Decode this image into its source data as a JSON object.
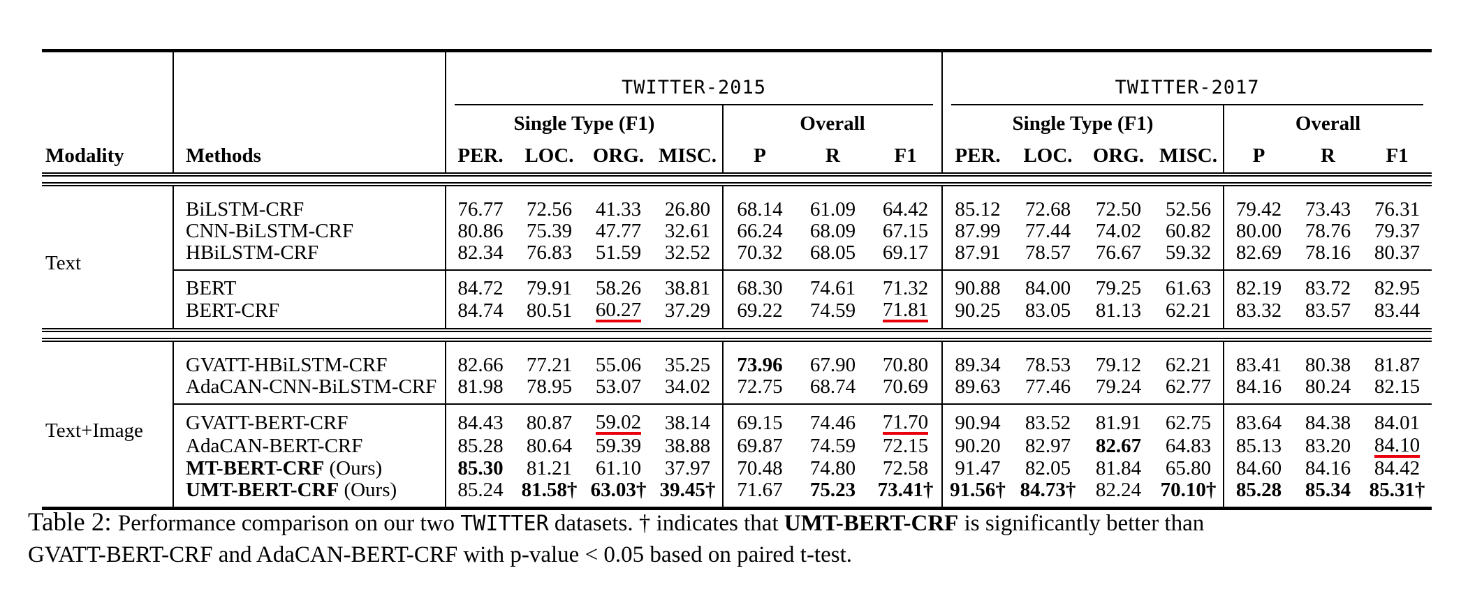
{
  "table": {
    "header": {
      "modality_label": "Modality",
      "methods_label": "Methods",
      "datasets": [
        "TWITTER-2015",
        "TWITTER-2017"
      ],
      "subgroup_labels": {
        "single": "Single Type (F1)",
        "overall": "Overall"
      },
      "columns_single": [
        "PER.",
        "LOC.",
        "ORG.",
        "MISC."
      ],
      "columns_overall": [
        "P",
        "R",
        "F1"
      ]
    },
    "colors": {
      "highlight_underline": "#e8000b",
      "rule": "#000000"
    },
    "groups": [
      {
        "modality": "Text",
        "subgroups": [
          {
            "rows": [
              {
                "method": "BiLSTM-CRF",
                "bold_method": false,
                "suffix": "",
                "cells": [
                  "76.77",
                  "72.56",
                  "41.33",
                  "26.80",
                  "68.14",
                  "61.09",
                  "64.42",
                  "85.12",
                  "72.68",
                  "72.50",
                  "52.56",
                  "79.42",
                  "73.43",
                  "76.31"
                ]
              },
              {
                "method": "CNN-BiLSTM-CRF",
                "bold_method": false,
                "suffix": "",
                "cells": [
                  "80.86",
                  "75.39",
                  "47.77",
                  "32.61",
                  "66.24",
                  "68.09",
                  "67.15",
                  "87.99",
                  "77.44",
                  "74.02",
                  "60.82",
                  "80.00",
                  "78.76",
                  "79.37"
                ]
              },
              {
                "method": "HBiLSTM-CRF",
                "bold_method": false,
                "suffix": "",
                "cells": [
                  "82.34",
                  "76.83",
                  "51.59",
                  "32.52",
                  "70.32",
                  "68.05",
                  "69.17",
                  "87.91",
                  "78.57",
                  "76.67",
                  "59.32",
                  "82.69",
                  "78.16",
                  "80.37"
                ]
              }
            ]
          },
          {
            "rows": [
              {
                "method": "BERT",
                "bold_method": false,
                "suffix": "",
                "cells": [
                  "84.72",
                  "79.91",
                  "58.26",
                  "38.81",
                  "68.30",
                  "74.61",
                  "71.32",
                  "90.88",
                  "84.00",
                  "79.25",
                  "61.63",
                  "82.19",
                  "83.72",
                  "82.95"
                ]
              },
              {
                "method": "BERT-CRF",
                "bold_method": false,
                "suffix": "",
                "cells": [
                  "84.74",
                  "80.51",
                  "u|60.27",
                  "37.29",
                  "69.22",
                  "74.59",
                  "u|71.81",
                  "90.25",
                  "83.05",
                  "81.13",
                  "62.21",
                  "83.32",
                  "83.57",
                  "83.44"
                ]
              }
            ]
          }
        ]
      },
      {
        "modality": "Text+Image",
        "subgroups": [
          {
            "rows": [
              {
                "method": "GVATT-HBiLSTM-CRF",
                "bold_method": false,
                "suffix": "",
                "cells": [
                  "82.66",
                  "77.21",
                  "55.06",
                  "35.25",
                  "b|73.96",
                  "67.90",
                  "70.80",
                  "89.34",
                  "78.53",
                  "79.12",
                  "62.21",
                  "83.41",
                  "80.38",
                  "81.87"
                ]
              },
              {
                "method": "AdaCAN-CNN-BiLSTM-CRF",
                "bold_method": false,
                "suffix": "",
                "cells": [
                  "81.98",
                  "78.95",
                  "53.07",
                  "34.02",
                  "72.75",
                  "68.74",
                  "70.69",
                  "89.63",
                  "77.46",
                  "79.24",
                  "62.77",
                  "84.16",
                  "80.24",
                  "82.15"
                ]
              }
            ]
          },
          {
            "rows": [
              {
                "method": "GVATT-BERT-CRF",
                "bold_method": false,
                "suffix": "",
                "cells": [
                  "84.43",
                  "80.87",
                  "u|59.02",
                  "38.14",
                  "69.15",
                  "74.46",
                  "u|71.70",
                  "90.94",
                  "83.52",
                  "81.91",
                  "62.75",
                  "83.64",
                  "84.38",
                  "84.01"
                ]
              },
              {
                "method": "AdaCAN-BERT-CRF",
                "bold_method": false,
                "suffix": "",
                "cells": [
                  "85.28",
                  "80.64",
                  "59.39",
                  "38.88",
                  "69.87",
                  "74.59",
                  "72.15",
                  "90.20",
                  "82.97",
                  "b|82.67",
                  "64.83",
                  "85.13",
                  "83.20",
                  "u|84.10"
                ]
              },
              {
                "method": "MT-BERT-CRF",
                "bold_method": true,
                "suffix": " (Ours)",
                "cells": [
                  "b|85.30",
                  "81.21",
                  "61.10",
                  "37.97",
                  "70.48",
                  "74.80",
                  "72.58",
                  "91.47",
                  "82.05",
                  "81.84",
                  "65.80",
                  "84.60",
                  "84.16",
                  "84.42"
                ]
              },
              {
                "method": "UMT-BERT-CRF",
                "bold_method": true,
                "suffix": " (Ours)",
                "cells": [
                  "85.24",
                  "b|81.58†",
                  "b|63.03†",
                  "b|39.45†",
                  "71.67",
                  "b|75.23",
                  "b|73.41†",
                  "b|91.56†",
                  "b|84.73†",
                  "82.24",
                  "b|70.10†",
                  "b|85.28",
                  "b|85.34",
                  "b|85.31†"
                ]
              }
            ]
          }
        ]
      }
    ]
  },
  "caption": {
    "parts": [
      {
        "text": "Table 2: ",
        "style": "label"
      },
      {
        "text": "Performance comparison on our two ",
        "style": ""
      },
      {
        "text": "TWITTER",
        "style": "mono"
      },
      {
        "text": " datasets. † indicates that ",
        "style": ""
      },
      {
        "text": "UMT-BERT-CRF",
        "style": "bold"
      },
      {
        "text": " is significantly better than",
        "style": ""
      },
      {
        "text": "",
        "style": "break"
      },
      {
        "text": "GVATT-BERT-CRF and AdaCAN-BERT-CRF with p-value < 0.05 based on paired t-test.",
        "style": ""
      }
    ]
  }
}
